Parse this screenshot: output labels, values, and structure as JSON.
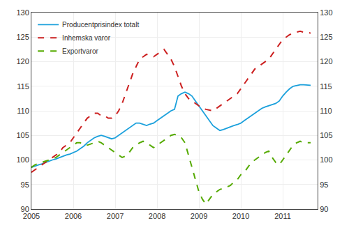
{
  "chart_data": {
    "type": "line",
    "x": [
      2005.0,
      2005.0833333333333,
      2005.1666666666667,
      2005.25,
      2005.3333333333333,
      2005.4166666666667,
      2005.5,
      2005.5833333333333,
      2005.6666666666667,
      2005.75,
      2005.8333333333333,
      2005.9166666666667,
      2006.0,
      2006.0833333333333,
      2006.1666666666667,
      2006.25,
      2006.3333333333333,
      2006.4166666666667,
      2006.5,
      2006.5833333333333,
      2006.6666666666667,
      2006.75,
      2006.8333333333333,
      2006.9166666666667,
      2007.0,
      2007.0833333333333,
      2007.1666666666667,
      2007.25,
      2007.3333333333333,
      2007.4166666666667,
      2007.5,
      2007.5833333333333,
      2007.6666666666667,
      2007.75,
      2007.8333333333333,
      2007.9166666666667,
      2008.0,
      2008.0833333333333,
      2008.1666666666667,
      2008.25,
      2008.3333333333333,
      2008.4166666666667,
      2008.5,
      2008.5833333333333,
      2008.6666666666667,
      2008.75,
      2008.8333333333333,
      2008.9166666666667,
      2009.0,
      2009.0833333333333,
      2009.1666666666667,
      2009.25,
      2009.3333333333333,
      2009.4166666666667,
      2009.5,
      2009.5833333333333,
      2009.6666666666667,
      2009.75,
      2009.8333333333333,
      2009.9166666666667,
      2010.0,
      2010.0833333333333,
      2010.1666666666667,
      2010.25,
      2010.3333333333333,
      2010.4166666666667,
      2010.5,
      2010.5833333333333,
      2010.6666666666667,
      2010.75,
      2010.8333333333333,
      2010.9166666666667,
      2011.0,
      2011.0833333333333,
      2011.1666666666667,
      2011.25,
      2011.3333333333333,
      2011.4166666666667,
      2011.5,
      2011.5833333333333,
      2011.6666666666667
    ],
    "series": [
      {
        "name": "Producentprisindex totalt",
        "color": "#1AA0DC",
        "line_style": "solid",
        "values": [
          98.5,
          98.8,
          99.0,
          99.2,
          99.5,
          99.7,
          100.0,
          100.2,
          100.5,
          100.8,
          101.0,
          101.2,
          101.5,
          101.8,
          102.3,
          102.8,
          103.5,
          104.0,
          104.5,
          104.8,
          105.0,
          104.8,
          104.5,
          104.3,
          104.5,
          105.0,
          105.5,
          106.0,
          106.5,
          107.0,
          107.5,
          107.5,
          107.2,
          107.0,
          107.3,
          107.5,
          108.0,
          108.5,
          109.0,
          109.5,
          110.0,
          110.3,
          113.0,
          113.5,
          113.8,
          113.5,
          113.0,
          112.0,
          111.0,
          110.0,
          109.0,
          108.0,
          107.0,
          106.5,
          106.0,
          106.2,
          106.5,
          106.8,
          107.0,
          107.2,
          107.5,
          108.0,
          108.5,
          109.0,
          109.5,
          110.0,
          110.5,
          110.8,
          111.0,
          111.2,
          111.5,
          112.0,
          113.0,
          113.8,
          114.5,
          115.0,
          115.2,
          115.3,
          115.3,
          115.2,
          115.2
        ]
      },
      {
        "name": "Inhemska varor",
        "color": "#CC2020",
        "line_style": "dashed",
        "values": [
          97.5,
          98.0,
          98.5,
          99.0,
          99.5,
          100.0,
          100.5,
          101.0,
          101.5,
          102.5,
          103.0,
          103.5,
          104.5,
          105.5,
          106.5,
          107.5,
          108.5,
          109.0,
          109.5,
          109.5,
          109.0,
          109.0,
          108.5,
          108.5,
          109.0,
          110.0,
          111.5,
          113.5,
          115.5,
          117.5,
          119.0,
          120.5,
          121.0,
          121.5,
          121.3,
          121.0,
          121.5,
          122.0,
          122.5,
          121.5,
          120.5,
          119.0,
          117.0,
          115.0,
          113.5,
          112.5,
          112.0,
          111.5,
          111.0,
          110.5,
          110.3,
          110.2,
          110.0,
          110.5,
          111.0,
          111.5,
          112.0,
          112.5,
          113.0,
          113.5,
          114.5,
          115.5,
          116.5,
          117.5,
          118.5,
          119.0,
          119.5,
          120.0,
          120.5,
          121.5,
          122.5,
          123.5,
          124.5,
          125.0,
          125.5,
          125.8,
          126.0,
          126.2,
          126.0,
          126.0,
          125.8
        ]
      },
      {
        "name": "Exportvaror",
        "color": "#55AA00",
        "line_style": "dashed",
        "values": [
          98.5,
          99.0,
          99.3,
          99.5,
          99.8,
          100.0,
          100.2,
          100.5,
          101.0,
          101.5,
          102.0,
          102.5,
          103.0,
          103.5,
          103.5,
          103.0,
          103.0,
          103.2,
          103.5,
          103.8,
          103.5,
          103.0,
          102.5,
          102.0,
          101.5,
          101.0,
          100.5,
          100.8,
          101.5,
          102.5,
          103.0,
          103.5,
          103.8,
          103.5,
          103.0,
          102.5,
          103.0,
          103.5,
          104.0,
          104.5,
          105.0,
          105.2,
          105.0,
          104.5,
          103.5,
          101.0,
          98.5,
          96.0,
          93.5,
          92.0,
          91.0,
          92.0,
          93.0,
          93.5,
          94.0,
          94.2,
          94.5,
          94.8,
          95.5,
          96.0,
          97.0,
          97.5,
          98.5,
          99.5,
          100.0,
          100.5,
          101.0,
          101.5,
          101.8,
          100.5,
          99.5,
          99.0,
          100.0,
          101.0,
          102.0,
          103.0,
          103.5,
          103.8,
          103.5,
          103.5,
          103.5
        ]
      }
    ],
    "xlim": [
      2005.0,
      2011.833
    ],
    "xticks": [
      2005,
      2006,
      2007,
      2008,
      2009,
      2010,
      2011
    ],
    "ylim": [
      90,
      130
    ],
    "yticks": [
      90,
      95,
      100,
      105,
      110,
      115,
      120,
      125,
      130
    ],
    "y2lim": [
      90,
      130
    ],
    "y2ticks": [
      90,
      95,
      100,
      105,
      110,
      115,
      120,
      125,
      130
    ],
    "grid": true,
    "legend": "upper left"
  }
}
